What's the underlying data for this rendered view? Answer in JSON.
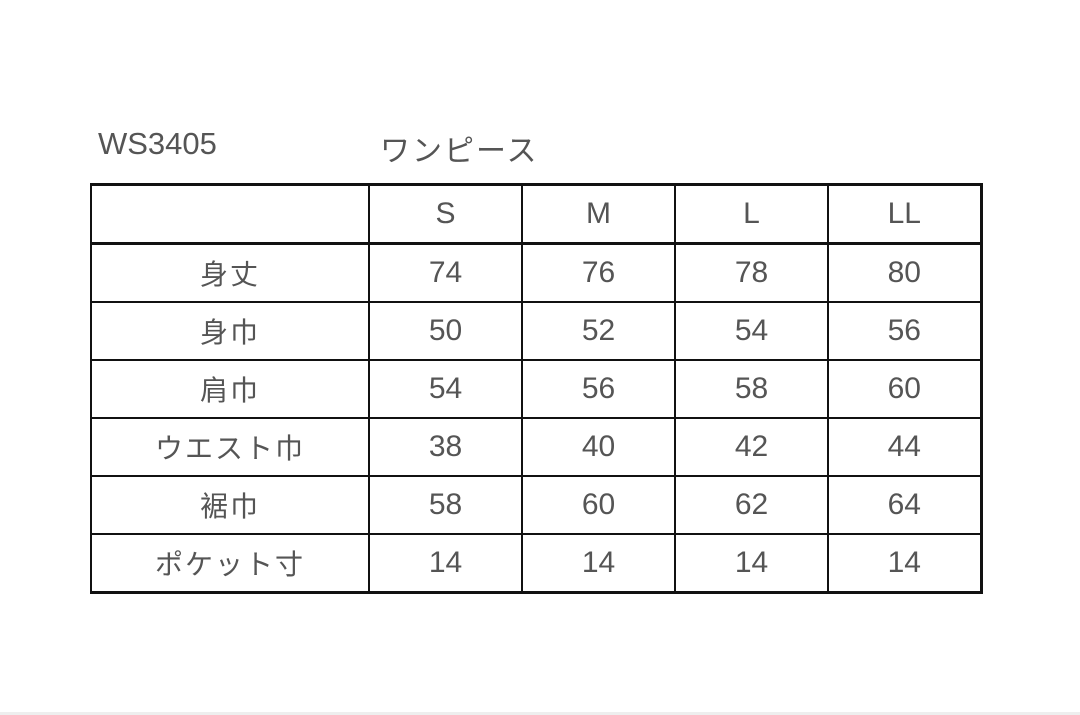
{
  "product_code": "WS3405",
  "product_name": "ワンピース",
  "table": {
    "headers": [
      "",
      "S",
      "M",
      "L",
      "LL"
    ],
    "rows": [
      {
        "label": "身丈",
        "values": [
          "74",
          "76",
          "78",
          "80"
        ]
      },
      {
        "label": "身巾",
        "values": [
          "50",
          "52",
          "54",
          "56"
        ]
      },
      {
        "label": "肩巾",
        "values": [
          "54",
          "56",
          "58",
          "60"
        ]
      },
      {
        "label": "ウエスト巾",
        "values": [
          "38",
          "40",
          "42",
          "44"
        ]
      },
      {
        "label": "裾巾",
        "values": [
          "58",
          "60",
          "62",
          "64"
        ]
      },
      {
        "label": "ポケット寸",
        "values": [
          "14",
          "14",
          "14",
          "14"
        ]
      }
    ]
  }
}
